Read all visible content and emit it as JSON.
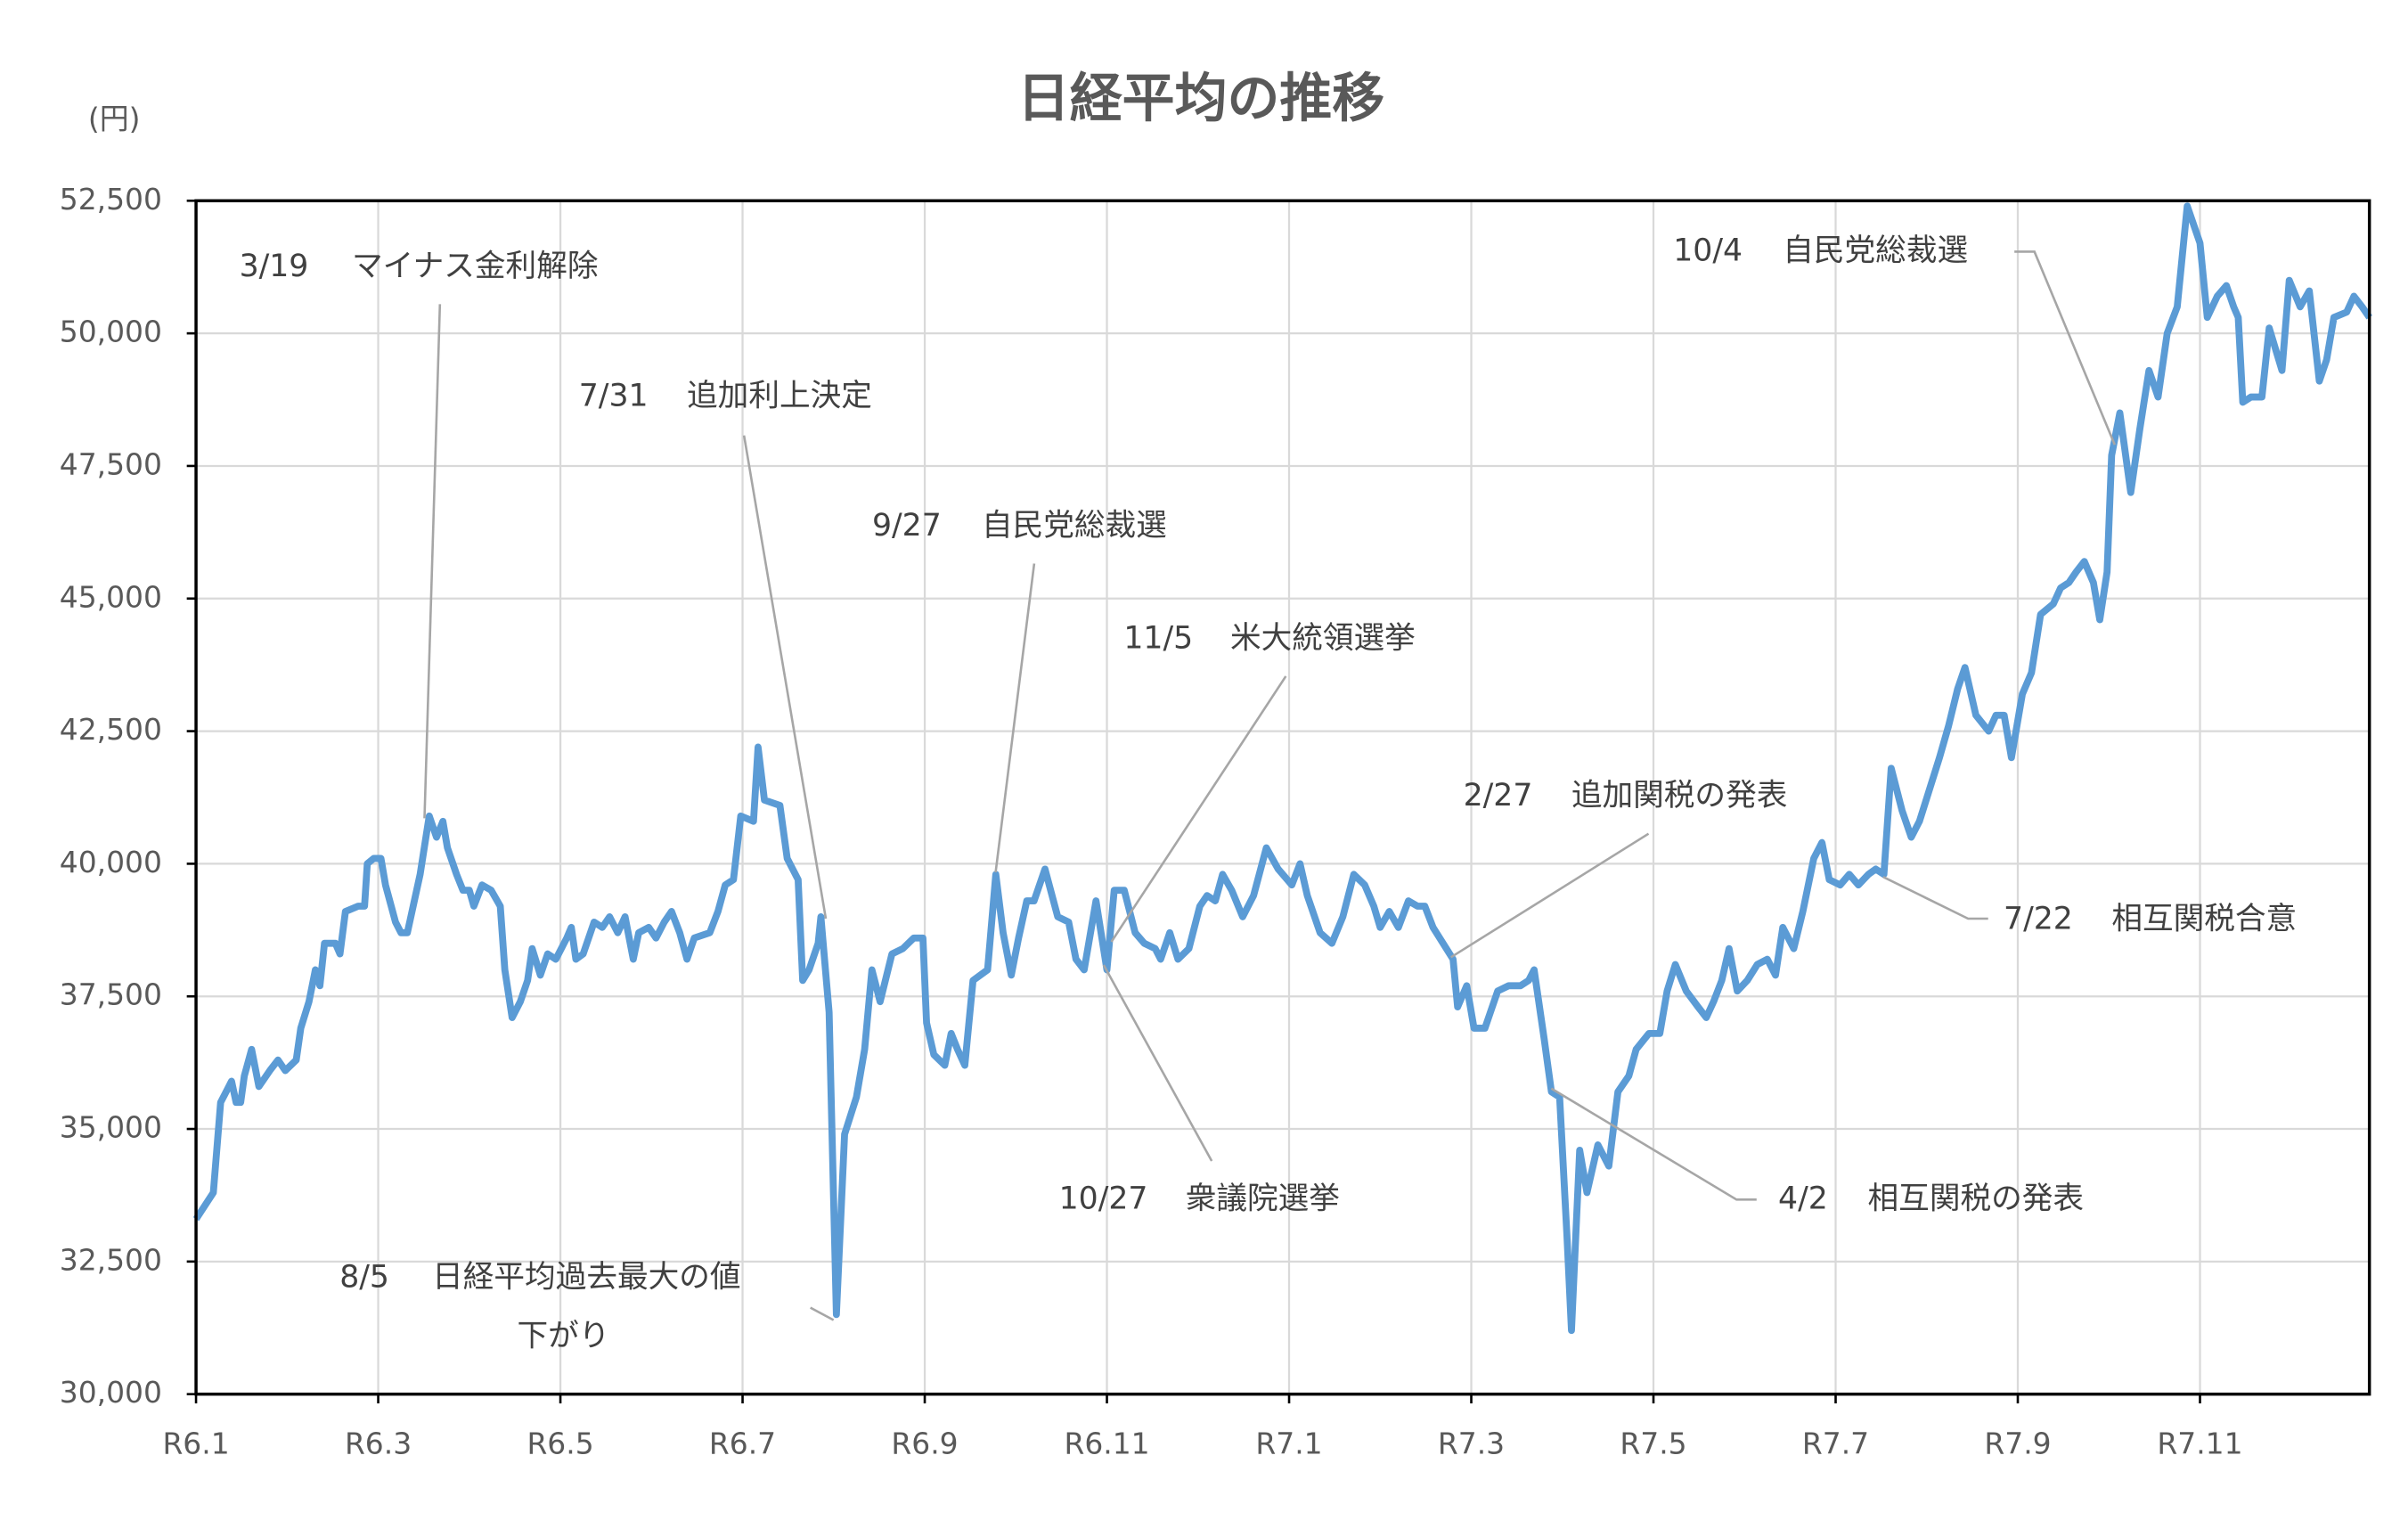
{
  "chart_data": {
    "type": "line",
    "title": "日経平均の推移",
    "ylabel": "(円)",
    "color": "#5b9bd5",
    "grid": true,
    "xlim": [
      0,
      23.86
    ],
    "xticks": [
      {
        "value": 0,
        "label": "R6.1"
      },
      {
        "value": 2,
        "label": "R6.3"
      },
      {
        "value": 4,
        "label": "R6.5"
      },
      {
        "value": 6,
        "label": "R6.7"
      },
      {
        "value": 8,
        "label": "R6.9"
      },
      {
        "value": 10,
        "label": "R6.11"
      },
      {
        "value": 12,
        "label": "R7.1"
      },
      {
        "value": 14,
        "label": "R7.3"
      },
      {
        "value": 16,
        "label": "R7.5"
      },
      {
        "value": 18,
        "label": "R7.7"
      },
      {
        "value": 20,
        "label": "R7.9"
      },
      {
        "value": 22,
        "label": "R7.11"
      }
    ],
    "ylim": [
      30000,
      52500
    ],
    "yticks": [
      {
        "value": 30000,
        "label": "30,000"
      },
      {
        "value": 32500,
        "label": "32,500"
      },
      {
        "value": 35000,
        "label": "35,000"
      },
      {
        "value": 37500,
        "label": "37,500"
      },
      {
        "value": 40000,
        "label": "40,000"
      },
      {
        "value": 42500,
        "label": "42,500"
      },
      {
        "value": 45000,
        "label": "45,000"
      },
      {
        "value": 47500,
        "label": "47,500"
      },
      {
        "value": 50000,
        "label": "50,000"
      },
      {
        "value": 52500,
        "label": "52,500"
      }
    ],
    "x": [
      0,
      0.19,
      0.27,
      0.39,
      0.44,
      0.49,
      0.53,
      0.61,
      0.69,
      0.81,
      0.9,
      0.98,
      1.1,
      1.15,
      1.24,
      1.31,
      1.36,
      1.41,
      1.53,
      1.58,
      1.64,
      1.78,
      1.85,
      1.88,
      1.95,
      2.03,
      2.08,
      2.19,
      2.25,
      2.32,
      2.46,
      2.56,
      2.64,
      2.71,
      2.76,
      2.86,
      2.93,
      3.0,
      3.05,
      3.14,
      3.24,
      3.34,
      3.39,
      3.47,
      3.56,
      3.64,
      3.69,
      3.78,
      3.86,
      3.95,
      4.07,
      4.12,
      4.17,
      4.25,
      4.37,
      4.46,
      4.54,
      4.63,
      4.71,
      4.8,
      4.86,
      4.97,
      5.05,
      5.14,
      5.22,
      5.31,
      5.39,
      5.47,
      5.64,
      5.73,
      5.81,
      5.9,
      5.98,
      6.12,
      6.17,
      6.24,
      6.41,
      6.49,
      6.61,
      6.66,
      6.73,
      6.83,
      6.86,
      6.95,
      7.03,
      7.12,
      7.25,
      7.34,
      7.42,
      7.51,
      7.64,
      7.76,
      7.88,
      7.98,
      8.02,
      8.1,
      8.22,
      8.29,
      8.36,
      8.44,
      8.53,
      8.69,
      8.78,
      8.86,
      8.95,
      9.03,
      9.12,
      9.2,
      9.32,
      9.46,
      9.58,
      9.66,
      9.75,
      9.88,
      10.0,
      10.08,
      10.19,
      10.31,
      10.41,
      10.53,
      10.59,
      10.69,
      10.78,
      10.9,
      11.02,
      11.1,
      11.19,
      11.27,
      11.37,
      11.49,
      11.61,
      11.75,
      11.88,
      12.03,
      12.12,
      12.2,
      12.34,
      12.47,
      12.59,
      12.71,
      12.83,
      12.93,
      13.0,
      13.1,
      13.2,
      13.31,
      13.41,
      13.49,
      13.58,
      13.69,
      13.8,
      13.85,
      13.95,
      14.03,
      14.15,
      14.29,
      14.41,
      14.54,
      14.63,
      14.69,
      14.8,
      14.88,
      14.97,
      15.05,
      15.1,
      15.19,
      15.27,
      15.39,
      15.51,
      15.61,
      15.73,
      15.81,
      15.95,
      16.07,
      16.15,
      16.24,
      16.36,
      16.49,
      16.58,
      16.66,
      16.75,
      16.83,
      16.92,
      17.03,
      17.14,
      17.25,
      17.34,
      17.42,
      17.54,
      17.64,
      17.76,
      17.85,
      17.93,
      18.05,
      18.15,
      18.25,
      18.36,
      18.44,
      18.53,
      18.61,
      18.73,
      18.83,
      18.92,
      19.03,
      19.14,
      19.24,
      19.34,
      19.42,
      19.54,
      19.68,
      19.76,
      19.85,
      19.93,
      20.05,
      20.15,
      20.25,
      20.39,
      20.47,
      20.56,
      20.64,
      20.73,
      20.83,
      20.9,
      20.98,
      21.03,
      21.12,
      21.24,
      21.34,
      21.44,
      21.54,
      21.64,
      21.75,
      21.86,
      22.0,
      22.08,
      22.19,
      22.29,
      22.37,
      22.42,
      22.47,
      22.56,
      22.68,
      22.76,
      22.9,
      22.98,
      23.1,
      23.2,
      23.31,
      23.39,
      23.47,
      23.61,
      23.69,
      23.78,
      23.86
    ],
    "values": [
      33300,
      33800,
      35500,
      35900,
      35500,
      35500,
      36000,
      36500,
      35800,
      36100,
      36300,
      36100,
      36300,
      36900,
      37400,
      38000,
      37700,
      38500,
      38500,
      38300,
      39100,
      39200,
      39200,
      40000,
      40100,
      40100,
      39600,
      38900,
      38700,
      38700,
      39800,
      40900,
      40500,
      40800,
      40300,
      39800,
      39500,
      39500,
      39200,
      39600,
      39500,
      39200,
      38000,
      37100,
      37400,
      37800,
      38400,
      37900,
      38300,
      38200,
      38600,
      38800,
      38200,
      38300,
      38900,
      38800,
      39000,
      38700,
      39000,
      38200,
      38700,
      38800,
      38600,
      38900,
      39100,
      38700,
      38200,
      38600,
      38700,
      39100,
      39600,
      39700,
      40900,
      40800,
      42200,
      41200,
      41100,
      40100,
      39700,
      37800,
      38000,
      38500,
      39000,
      37200,
      31500,
      34900,
      35600,
      36500,
      38000,
      37400,
      38300,
      38400,
      38600,
      38600,
      37000,
      36400,
      36200,
      36800,
      36500,
      36200,
      37800,
      38000,
      39800,
      38700,
      37900,
      38600,
      39300,
      39300,
      39900,
      39000,
      38900,
      38200,
      38000,
      39300,
      38000,
      39500,
      39500,
      38700,
      38500,
      38400,
      38200,
      38700,
      38200,
      38400,
      39200,
      39400,
      39300,
      39800,
      39500,
      39000,
      39400,
      40300,
      39900,
      39600,
      40000,
      39400,
      38700,
      38500,
      39000,
      39800,
      39600,
      39200,
      38800,
      39100,
      38800,
      39300,
      39200,
      39200,
      38800,
      38500,
      38200,
      37300,
      37700,
      36900,
      36900,
      37600,
      37700,
      37700,
      37800,
      38000,
      36700,
      35700,
      35600,
      33000,
      31200,
      34600,
      33800,
      34700,
      34300,
      35700,
      36000,
      36500,
      36800,
      36800,
      37600,
      38100,
      37600,
      37300,
      37100,
      37400,
      37800,
      38400,
      37600,
      37800,
      38100,
      38200,
      37900,
      38800,
      38400,
      39100,
      40100,
      40400,
      39700,
      39600,
      39800,
      39600,
      39800,
      39900,
      39800,
      41800,
      41000,
      40500,
      40800,
      41400,
      42000,
      42600,
      43300,
      43700,
      42800,
      42500,
      42800,
      42800,
      42000,
      43200,
      43600,
      44700,
      44900,
      45200,
      45300,
      45500,
      45700,
      45300,
      44600,
      45500,
      47700,
      48500,
      47000,
      48200,
      49300,
      48800,
      50000,
      50500,
      52400,
      51700,
      50300,
      50700,
      50900,
      50500,
      50300,
      48700,
      48800,
      48800,
      50100,
      49300,
      51000,
      50500,
      50800,
      49100,
      49500,
      50300,
      50400,
      50700,
      50500,
      50300
    ],
    "annotations": [
      {
        "date": "3/19",
        "text": "マイナス金利解除"
      },
      {
        "date": "7/31",
        "text": "追加利上決定"
      },
      {
        "date": "8/5",
        "text": [
          "日経平均過去最大の値",
          "下がり"
        ]
      },
      {
        "date": "9/27",
        "text": "自民党総裁選"
      },
      {
        "date": "11/5",
        "text": "米大統領選挙"
      },
      {
        "date": "10/27",
        "text": "衆議院選挙"
      },
      {
        "date": "2/27",
        "text": "追加関税の発表"
      },
      {
        "date": "4/2",
        "text": "相互関税の発表"
      },
      {
        "date": "7/22",
        "text": "相互関税合意"
      },
      {
        "date": "10/4",
        "text": "自民党総裁選"
      }
    ]
  }
}
